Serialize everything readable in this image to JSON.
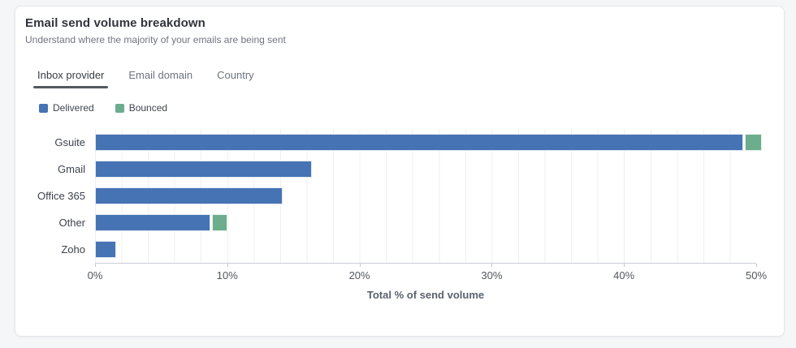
{
  "card": {
    "title": "Email send volume breakdown",
    "subtitle": "Understand where the majority of your emails are being sent",
    "tabs": [
      {
        "label": "Inbox provider",
        "active": true
      },
      {
        "label": "Email domain",
        "active": false
      },
      {
        "label": "Country",
        "active": false
      }
    ],
    "legend": [
      {
        "label": "Delivered",
        "color": "#4673B4"
      },
      {
        "label": "Bounced",
        "color": "#6BAD8D"
      }
    ]
  },
  "chart_data": {
    "type": "bar",
    "orientation": "horizontal",
    "stacked": true,
    "categories": [
      "Gsuite",
      "Gmail",
      "Office 365",
      "Other",
      "Zoho"
    ],
    "series": [
      {
        "name": "Delivered",
        "color": "#4673B4",
        "values": [
          49.0,
          16.4,
          14.2,
          8.7,
          1.6
        ]
      },
      {
        "name": "Bounced",
        "color": "#6BAD8D",
        "values": [
          1.3,
          0,
          0,
          1.2,
          0
        ]
      }
    ],
    "title": "Email send volume breakdown",
    "xlabel": "Total % of send volume",
    "ylabel": "",
    "xlim": [
      0,
      50
    ],
    "x_ticks": [
      "0%",
      "10%",
      "20%",
      "30%",
      "40%",
      "50%"
    ],
    "grid": "vertical",
    "grid_interval_pct": 2,
    "legend_position": "top-left"
  }
}
